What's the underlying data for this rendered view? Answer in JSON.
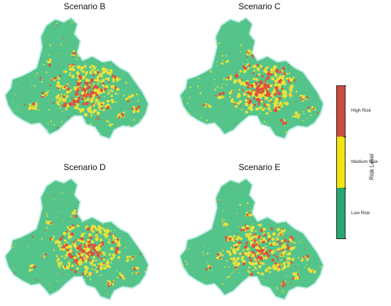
{
  "panels": [
    {
      "id": "B",
      "title": "Scenario B"
    },
    {
      "id": "C",
      "title": "Scenario C"
    },
    {
      "id": "D",
      "title": "Scenario D"
    },
    {
      "id": "E",
      "title": "Scenario E"
    }
  ],
  "legend": {
    "axis_label": "Risk Level",
    "levels": [
      {
        "label": "High Risk",
        "color": "#cc4b3f"
      },
      {
        "label": "Medium Risk",
        "color": "#f1e40f"
      },
      {
        "label": "Low Risk",
        "color": "#25a870"
      }
    ]
  },
  "colors": {
    "low": "#55c48a",
    "medium": "#e8e23c",
    "high": "#e0523a",
    "halo": "#bfeee6"
  }
}
